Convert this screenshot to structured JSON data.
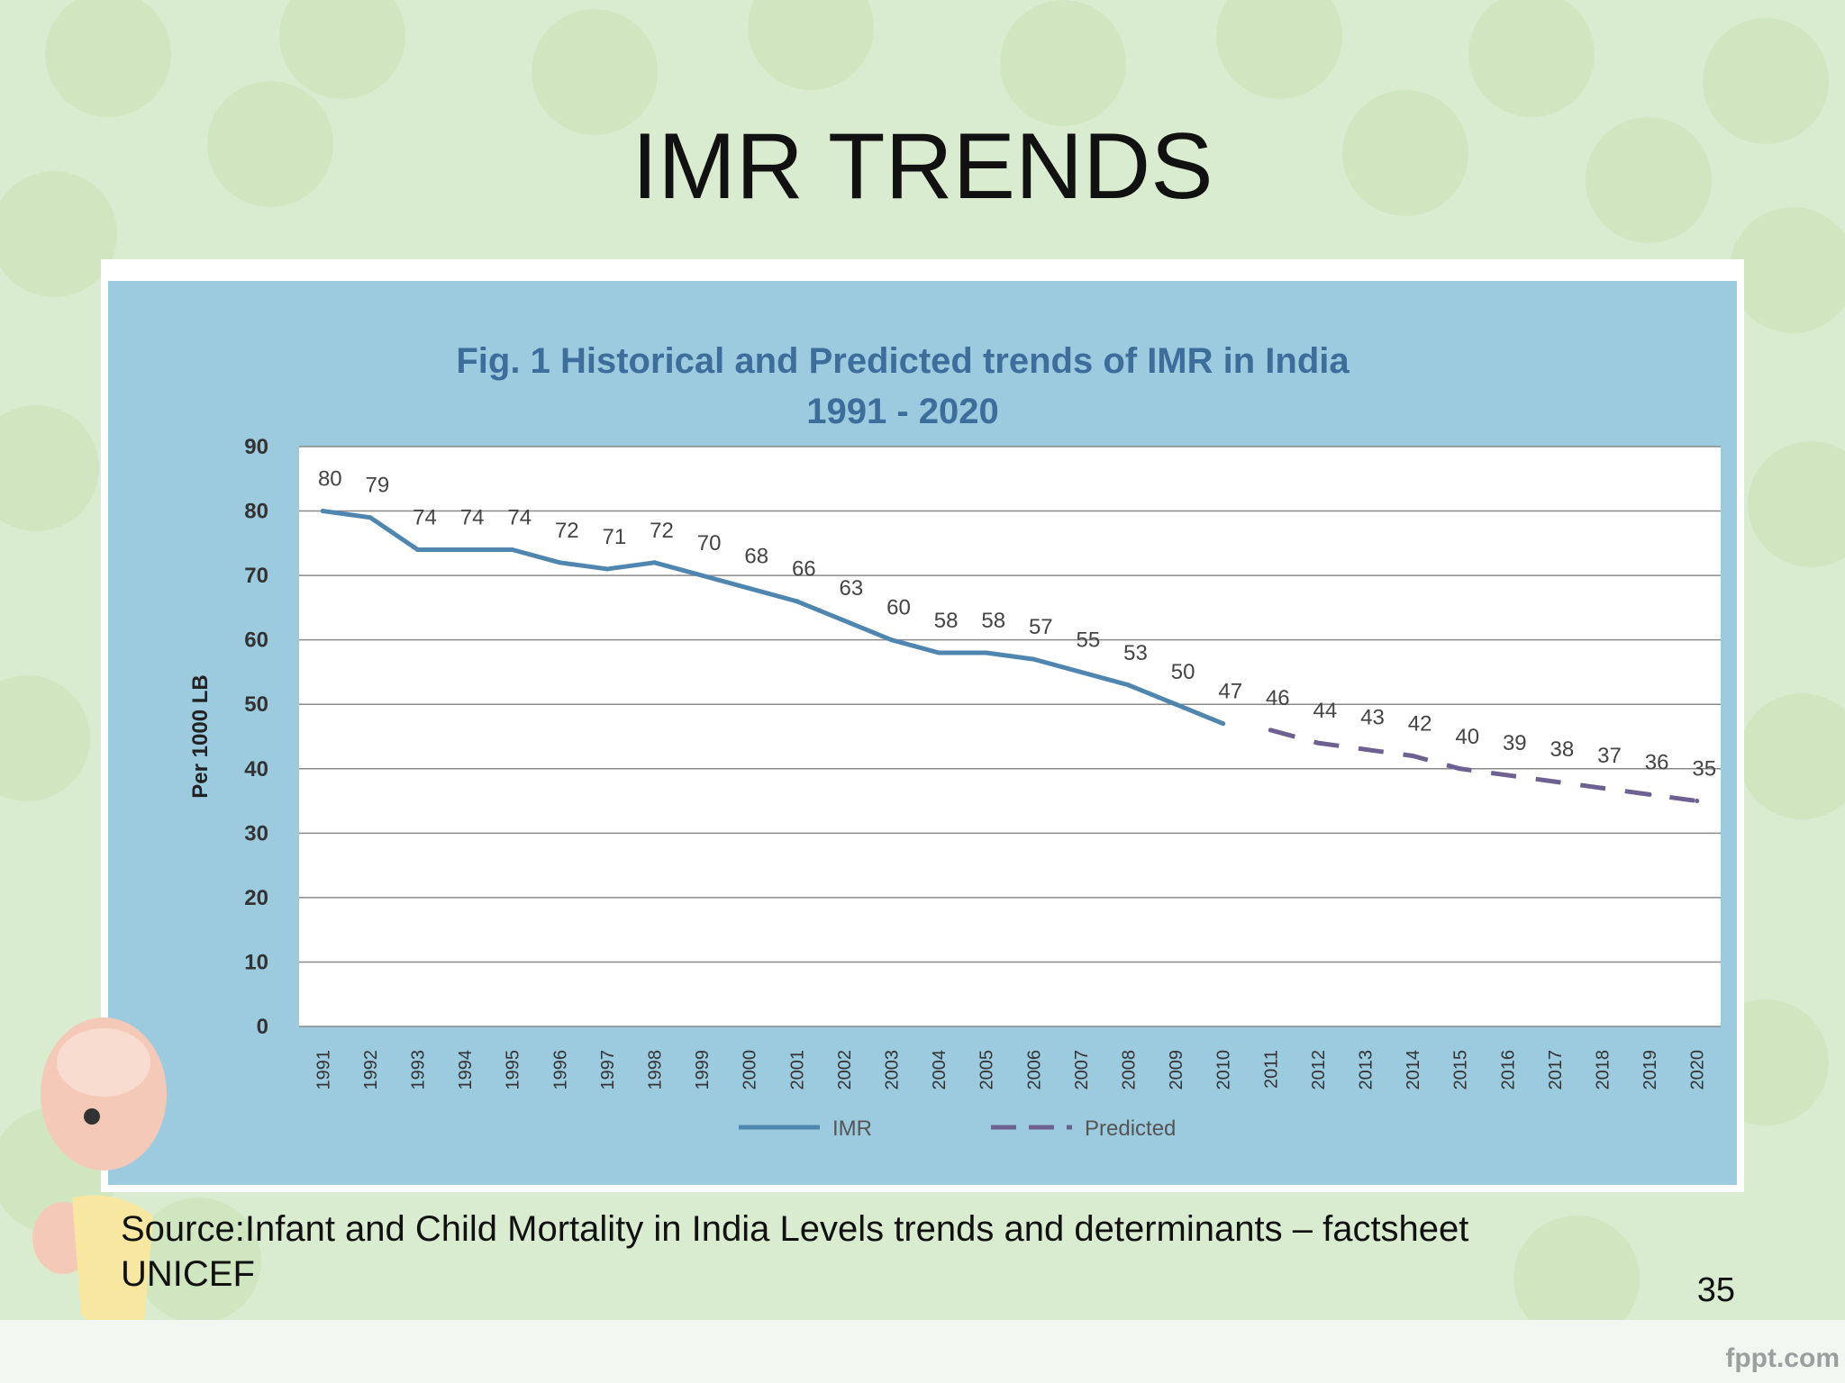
{
  "slide": {
    "title": "IMR TRENDS",
    "source_line1": "Source:Infant and Child Mortality in India Levels trends and determinants – factsheet",
    "source_line2": "UNICEF",
    "page_number": "35",
    "footer_brand": "fppt.com"
  },
  "colors": {
    "imr_line": "#4f86b0",
    "predicted_line": "#6e6090",
    "chart_bg": "#9ccbe0",
    "title_color": "#3d6d9a"
  },
  "chart_data": {
    "type": "line",
    "title_line1": "Fig. 1 Historical and Predicted trends of IMR in India",
    "title_line2": "1991 - 2020",
    "ylabel": "Per 1000 LB",
    "xlabel": "",
    "ylim": [
      0,
      90
    ],
    "yticks": [
      0,
      10,
      20,
      30,
      40,
      50,
      60,
      70,
      80,
      90
    ],
    "grid": true,
    "legend_position": "bottom",
    "x": [
      "1991",
      "1992",
      "1993",
      "1994",
      "1995",
      "1996",
      "1997",
      "1998",
      "1999",
      "2000",
      "2001",
      "2002",
      "2003",
      "2004",
      "2005",
      "2006",
      "2007",
      "2008",
      "2009",
      "2010",
      "2011",
      "2012",
      "2013",
      "2014",
      "2015",
      "2016",
      "2017",
      "2018",
      "2019",
      "2020"
    ],
    "series": [
      {
        "name": "IMR",
        "style": "solid",
        "x": [
          "1991",
          "1992",
          "1993",
          "1994",
          "1995",
          "1996",
          "1997",
          "1998",
          "1999",
          "2000",
          "2001",
          "2002",
          "2003",
          "2004",
          "2005",
          "2006",
          "2007",
          "2008",
          "2009",
          "2010"
        ],
        "values": [
          80,
          79,
          74,
          74,
          74,
          72,
          71,
          72,
          70,
          68,
          66,
          63,
          60,
          58,
          58,
          57,
          55,
          53,
          50,
          47
        ]
      },
      {
        "name": "Predicted",
        "style": "dashed",
        "x": [
          "2011",
          "2012",
          "2013",
          "2014",
          "2015",
          "2016",
          "2017",
          "2018",
          "2019",
          "2020"
        ],
        "values": [
          46,
          44,
          43,
          42,
          40,
          39,
          38,
          37,
          36,
          35
        ]
      }
    ]
  }
}
